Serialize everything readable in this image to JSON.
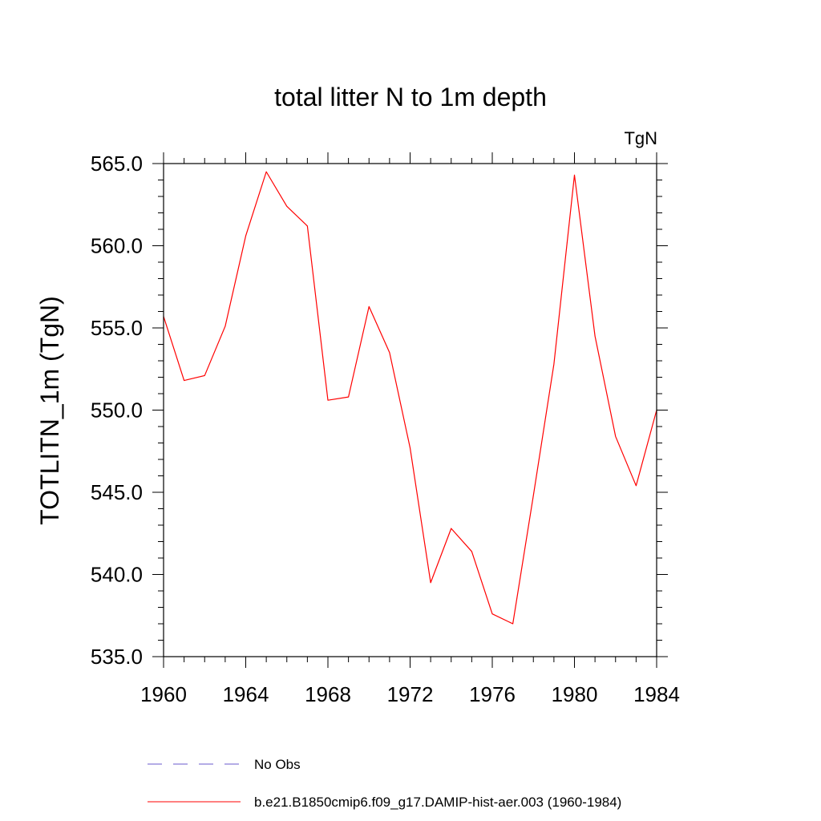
{
  "chart_data": {
    "type": "line",
    "title": "total litter N to 1m depth",
    "units_label": "TgN",
    "ylabel": "TOTLITN_1m  (TgN)",
    "xlabel": "",
    "xlim": [
      1960,
      1984
    ],
    "ylim": [
      535.0,
      565.0
    ],
    "x_ticks": [
      1960,
      1964,
      1968,
      1972,
      1976,
      1980,
      1984
    ],
    "x_tick_labels": [
      "1960",
      "1964",
      "1968",
      "1972",
      "1976",
      "1980",
      "1984"
    ],
    "y_ticks": [
      535.0,
      540.0,
      545.0,
      550.0,
      555.0,
      560.0,
      565.0
    ],
    "y_tick_labels": [
      "535.0",
      "540.0",
      "545.0",
      "550.0",
      "555.0",
      "560.0",
      "565.0"
    ],
    "grid": false,
    "legend_position": "bottom",
    "series": [
      {
        "name": "No Obs",
        "color": "#6a5acd",
        "dash": "dashed",
        "values": []
      },
      {
        "name": "b.e21.B1850cmip6.f09_g17.DAMIP-hist-aer.003 (1960-1984)",
        "color": "#ff0000",
        "dash": "solid",
        "x": [
          1960,
          1961,
          1962,
          1963,
          1964,
          1965,
          1966,
          1967,
          1968,
          1969,
          1970,
          1971,
          1972,
          1973,
          1974,
          1975,
          1976,
          1977,
          1978,
          1979,
          1980,
          1981,
          1982,
          1983,
          1984
        ],
        "values": [
          555.7,
          551.8,
          552.1,
          555.1,
          560.6,
          564.5,
          562.4,
          561.2,
          550.6,
          550.8,
          556.3,
          553.5,
          547.7,
          539.5,
          542.8,
          541.4,
          537.6,
          537.0,
          544.8,
          552.8,
          564.3,
          554.5,
          548.4,
          545.4,
          550.0
        ]
      }
    ]
  }
}
